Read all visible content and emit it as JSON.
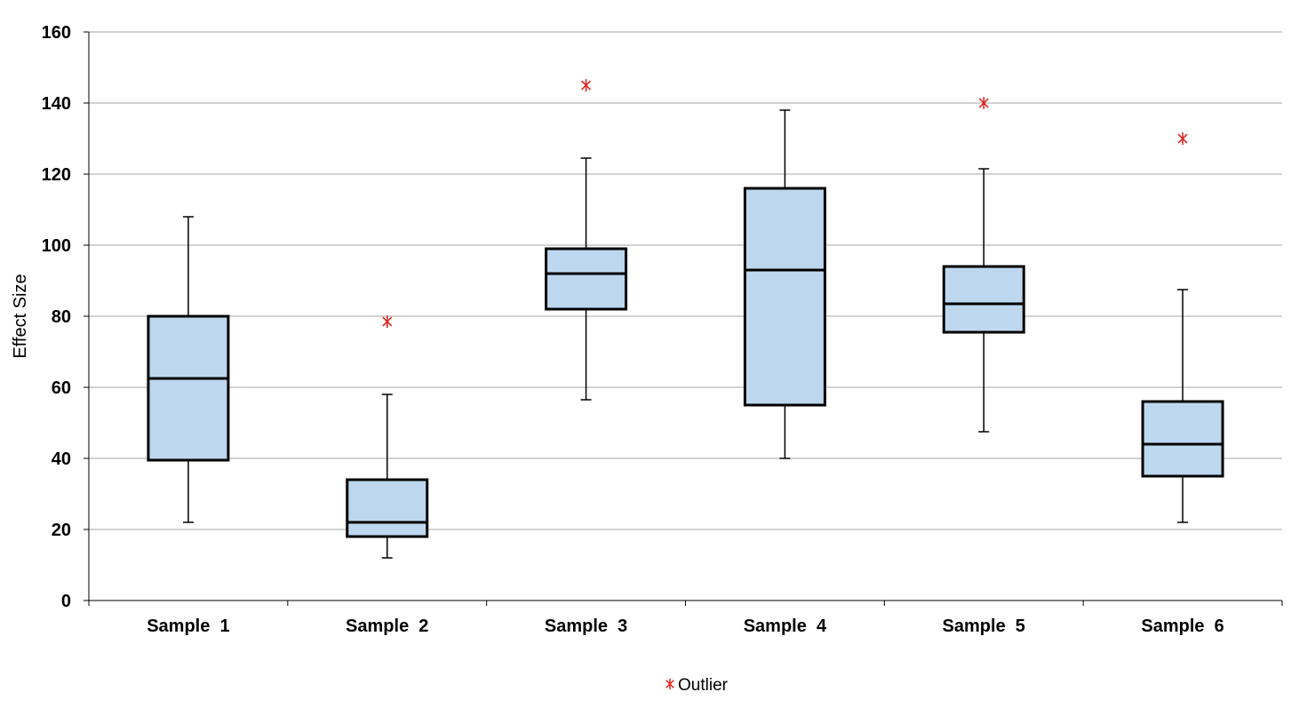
{
  "chart_data": {
    "type": "boxplot",
    "ylabel": "Effect Size",
    "xlabel": "",
    "ylim": [
      0,
      160
    ],
    "yticks": [
      0,
      20,
      40,
      60,
      80,
      100,
      120,
      140,
      160
    ],
    "grid": "horizontal",
    "categories": [
      "Sample  1",
      "Sample  2",
      "Sample  3",
      "Sample  4",
      "Sample  5",
      "Sample  6"
    ],
    "boxes": [
      {
        "min": 22,
        "q1": 39.5,
        "median": 62.5,
        "q3": 80,
        "max": 108,
        "outliers": []
      },
      {
        "min": 12,
        "q1": 18,
        "median": 22,
        "q3": 34,
        "max": 58,
        "outliers": [
          78.5
        ]
      },
      {
        "min": 56.5,
        "q1": 82,
        "median": 92,
        "q3": 99,
        "max": 124.5,
        "outliers": [
          145
        ]
      },
      {
        "min": 40,
        "q1": 55,
        "median": 93,
        "q3": 116,
        "max": 138,
        "outliers": []
      },
      {
        "min": 47.5,
        "q1": 75.5,
        "median": 83.5,
        "q3": 94,
        "max": 121.5,
        "outliers": [
          140
        ]
      },
      {
        "min": 22,
        "q1": 35,
        "median": 44,
        "q3": 56,
        "max": 87.5,
        "outliers": [
          130
        ]
      }
    ],
    "legend": {
      "label": "Outlier",
      "placement": "bottom"
    },
    "colors": {
      "box_fill": "#bdd7ee",
      "box_stroke": "#000000",
      "outlier": "#e0201b",
      "grid": "#a6a6a6"
    }
  }
}
